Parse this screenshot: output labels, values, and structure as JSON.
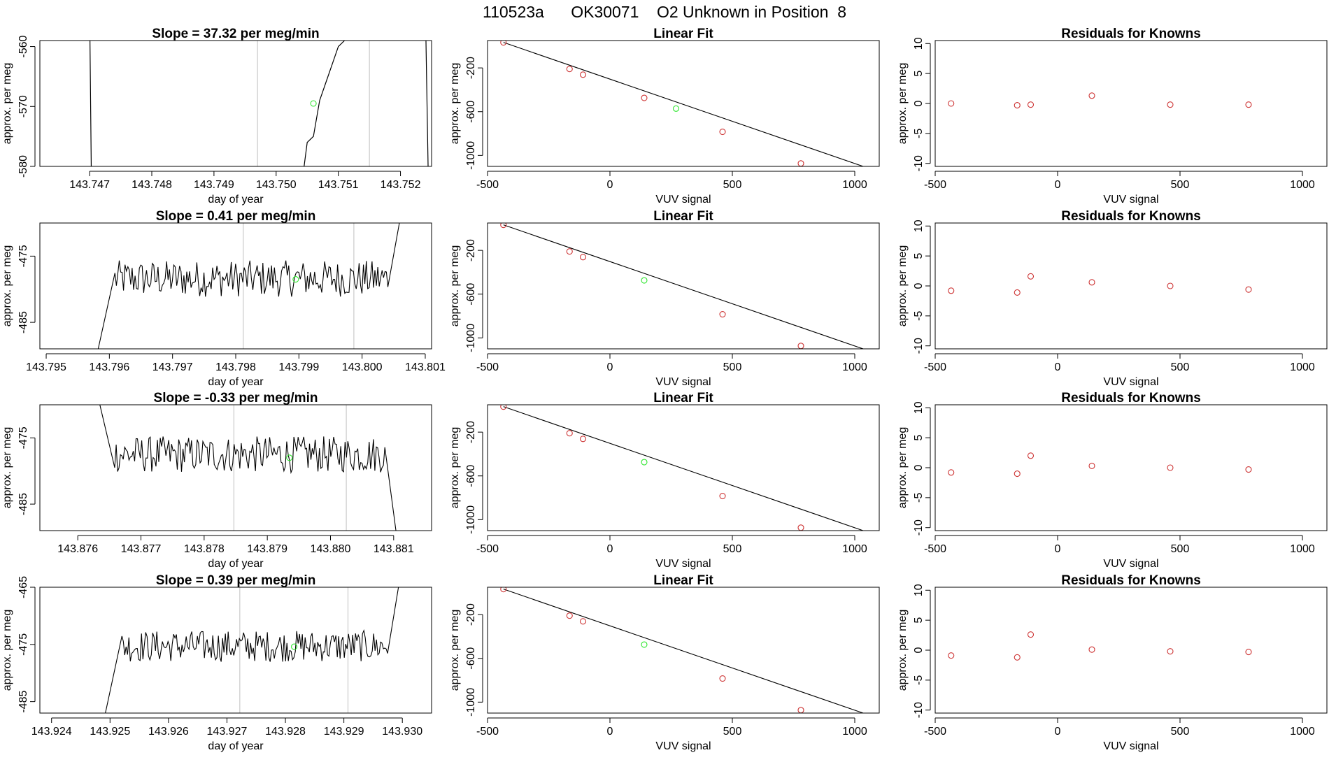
{
  "figure": {
    "title_parts": [
      "110523a",
      "OK30071",
      "O2 Unknown in Position  8"
    ],
    "colors": {
      "trace": "#000000",
      "guide_line": "#bfbfbf",
      "known_point": "#cd3333",
      "unknown_point": "#2ee62e"
    }
  },
  "chart_data": [
    {
      "type": "line",
      "row": 1,
      "panel": "timeseries",
      "title": "Slope =  37.32  per meg/min",
      "xlabel": "day of year",
      "ylabel": "approx. per meg",
      "xlim": [
        143.7462,
        143.7525
      ],
      "ylim": [
        -580,
        -559
      ],
      "xticks": [
        "143.747",
        "143.748",
        "143.749",
        "143.750",
        "143.751",
        "143.752"
      ],
      "yticks": [
        "-560",
        "-570",
        "-580"
      ],
      "guide_lines_x": [
        143.7497,
        143.7515
      ],
      "trace": {
        "x": [
          143.747,
          143.74703,
          143.7504,
          143.7505,
          143.7506,
          143.7507,
          143.7508,
          143.7509,
          143.751,
          143.7511,
          143.7524,
          143.75245
        ],
        "y": [
          -553,
          -584,
          -584,
          -576,
          -575,
          -569,
          -566,
          -563,
          -560,
          -559,
          -553,
          -584
        ]
      },
      "unknown_point": {
        "x": 143.7506,
        "y": -569.5
      }
    },
    {
      "type": "scatter",
      "row": 1,
      "panel": "linear-fit",
      "title": "Linear Fit",
      "xlabel": "VUV signal",
      "ylabel": "approx. per meg",
      "xlim": [
        -500,
        1100
      ],
      "ylim": [
        -1100,
        50
      ],
      "xticks": [
        "-500",
        "0",
        "500",
        "1000"
      ],
      "yticks": [
        "-200",
        "-600",
        "-1000"
      ],
      "known_points": {
        "x": [
          -435,
          -165,
          -110,
          140,
          460,
          780
        ],
        "y": [
          33,
          -210,
          -262,
          -474,
          -784,
          -1073
        ]
      },
      "unknown_point": {
        "x": 270,
        "y": -572
      },
      "fit_line": {
        "x": [
          -435,
          1060
        ],
        "y": [
          33,
          -1120
        ]
      }
    },
    {
      "type": "scatter",
      "row": 1,
      "panel": "residuals",
      "title": "Residuals for Knowns",
      "xlabel": "VUV signal",
      "ylabel": "approx. per meg",
      "xlim": [
        -500,
        1100
      ],
      "ylim": [
        -10.5,
        10.5
      ],
      "xticks": [
        "-500",
        "0",
        "500",
        "1000"
      ],
      "yticks": [
        "10",
        "5",
        "0",
        "-5",
        "-10"
      ],
      "known_points": {
        "x": [
          -435,
          -165,
          -110,
          140,
          460,
          780
        ],
        "y": [
          0,
          -0.3,
          -0.2,
          1.3,
          -0.2,
          -0.2
        ]
      }
    },
    {
      "type": "line",
      "row": 2,
      "panel": "timeseries",
      "title": "Slope =  0.41  per meg/min",
      "xlabel": "day of year",
      "ylabel": "approx. per meg",
      "xlim": [
        143.7949,
        143.8011
      ],
      "ylim": [
        -489,
        -470
      ],
      "xticks": [
        "143.795",
        "143.796",
        "143.797",
        "143.798",
        "143.799",
        "143.800",
        "143.801"
      ],
      "yticks": [
        "-475",
        "-485"
      ],
      "guide_lines_x": [
        143.79812,
        143.79987
      ],
      "trace_window": [
        143.7958,
        143.8006
      ],
      "trace_level": -478.4,
      "trace_start_y": -490,
      "trace_end_y": -469.5,
      "unknown_point": {
        "x": 143.79895,
        "y": -478.5
      }
    },
    {
      "type": "scatter",
      "row": 2,
      "panel": "linear-fit",
      "title": "Linear Fit",
      "xlabel": "VUV signal",
      "ylabel": "approx. per meg",
      "xlim": [
        -500,
        1100
      ],
      "ylim": [
        -1100,
        50
      ],
      "xticks": [
        "-500",
        "0",
        "500",
        "1000"
      ],
      "yticks": [
        "-200",
        "-600",
        "-1000"
      ],
      "known_points": {
        "x": [
          -435,
          -165,
          -110,
          460,
          780
        ],
        "y": [
          33,
          -210,
          -262,
          -784,
          -1073
        ]
      },
      "unknown_point": {
        "x": 140,
        "y": -474
      },
      "fit_line": {
        "x": [
          -435,
          1060
        ],
        "y": [
          33,
          -1120
        ]
      }
    },
    {
      "type": "scatter",
      "row": 2,
      "panel": "residuals",
      "title": "Residuals for Knowns",
      "xlabel": "VUV signal",
      "ylabel": "approx. per meg",
      "xlim": [
        -500,
        1100
      ],
      "ylim": [
        -10.5,
        10.5
      ],
      "xticks": [
        "-500",
        "0",
        "500",
        "1000"
      ],
      "yticks": [
        "10",
        "5",
        "0",
        "-5",
        "-10"
      ],
      "known_points": {
        "x": [
          -435,
          -165,
          -110,
          140,
          460,
          780
        ],
        "y": [
          -0.8,
          -1.1,
          1.6,
          0.6,
          0,
          -0.6
        ]
      }
    },
    {
      "type": "line",
      "row": 3,
      "panel": "timeseries",
      "title": "Slope =  -0.33  per meg/min",
      "xlabel": "day of year",
      "ylabel": "approx. per meg",
      "xlim": [
        143.8754,
        143.8816
      ],
      "ylim": [
        -489,
        -470
      ],
      "xticks": [
        "143.876",
        "143.877",
        "143.878",
        "143.879",
        "143.880",
        "143.881"
      ],
      "yticks": [
        "-475",
        "-485"
      ],
      "guide_lines_x": [
        143.87847,
        143.88025
      ],
      "trace_window": [
        143.8763,
        143.88105
      ],
      "trace_level": -477.5,
      "trace_start_y": -468,
      "trace_end_y": -490,
      "unknown_point": {
        "x": 143.87935,
        "y": -478
      }
    },
    {
      "type": "scatter",
      "row": 3,
      "panel": "linear-fit",
      "title": "Linear Fit",
      "xlabel": "VUV signal",
      "ylabel": "approx. per meg",
      "xlim": [
        -500,
        1100
      ],
      "ylim": [
        -1100,
        50
      ],
      "xticks": [
        "-500",
        "0",
        "500",
        "1000"
      ],
      "yticks": [
        "-200",
        "-600",
        "-1000"
      ],
      "known_points": {
        "x": [
          -435,
          -165,
          -110,
          460,
          780
        ],
        "y": [
          33,
          -210,
          -262,
          -784,
          -1073
        ]
      },
      "unknown_point": {
        "x": 140,
        "y": -474
      },
      "fit_line": {
        "x": [
          -435,
          1060
        ],
        "y": [
          33,
          -1120
        ]
      }
    },
    {
      "type": "scatter",
      "row": 3,
      "panel": "residuals",
      "title": "Residuals for Knowns",
      "xlabel": "VUV signal",
      "ylabel": "approx. per meg",
      "xlim": [
        -500,
        1100
      ],
      "ylim": [
        -10.5,
        10.5
      ],
      "xticks": [
        "-500",
        "0",
        "500",
        "1000"
      ],
      "yticks": [
        "10",
        "5",
        "0",
        "-5",
        "-10"
      ],
      "known_points": {
        "x": [
          -435,
          -165,
          -110,
          140,
          460,
          780
        ],
        "y": [
          -0.8,
          -1.0,
          2.0,
          0.3,
          0,
          -0.3
        ]
      }
    },
    {
      "type": "line",
      "row": 4,
      "panel": "timeseries",
      "title": "Slope =  0.39  per meg/min",
      "xlabel": "day of year",
      "ylabel": "approx. per meg",
      "xlim": [
        143.9238,
        143.9305
      ],
      "ylim": [
        -487,
        -465
      ],
      "xticks": [
        "143.924",
        "143.925",
        "143.926",
        "143.927",
        "143.928",
        "143.929",
        "143.930"
      ],
      "yticks": [
        "-465",
        "-475",
        "-485"
      ],
      "guide_lines_x": [
        143.92722,
        143.92907
      ],
      "trace_window": [
        143.9249,
        143.92995
      ],
      "trace_level": -475.3,
      "trace_start_y": -488,
      "trace_end_y": -464,
      "unknown_point": {
        "x": 143.92815,
        "y": -475.4
      }
    },
    {
      "type": "scatter",
      "row": 4,
      "panel": "linear-fit",
      "title": "Linear Fit",
      "xlabel": "VUV signal",
      "ylabel": "approx. per meg",
      "xlim": [
        -500,
        1100
      ],
      "ylim": [
        -1100,
        50
      ],
      "xticks": [
        "-500",
        "0",
        "500",
        "1000"
      ],
      "yticks": [
        "-200",
        "-600",
        "-1000"
      ],
      "known_points": {
        "x": [
          -435,
          -165,
          -110,
          460,
          780
        ],
        "y": [
          33,
          -210,
          -262,
          -784,
          -1073
        ]
      },
      "unknown_point": {
        "x": 140,
        "y": -474
      },
      "fit_line": {
        "x": [
          -435,
          1060
        ],
        "y": [
          33,
          -1120
        ]
      }
    },
    {
      "type": "scatter",
      "row": 4,
      "panel": "residuals",
      "title": "Residuals for Knowns",
      "xlabel": "VUV signal",
      "ylabel": "approx. per meg",
      "xlim": [
        -500,
        1100
      ],
      "ylim": [
        -10.5,
        10.5
      ],
      "xticks": [
        "-500",
        "0",
        "500",
        "1000"
      ],
      "yticks": [
        "10",
        "5",
        "0",
        "-5",
        "-10"
      ],
      "known_points": {
        "x": [
          -435,
          -165,
          -110,
          140,
          460,
          780
        ],
        "y": [
          -0.9,
          -1.2,
          2.6,
          0.1,
          -0.2,
          -0.3
        ]
      }
    }
  ]
}
